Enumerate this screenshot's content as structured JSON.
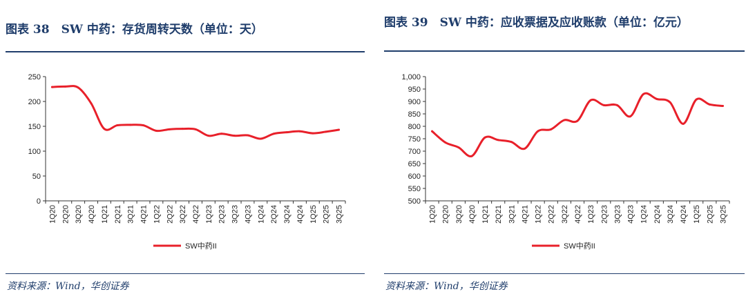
{
  "charts": [
    {
      "title": "图表 38　SW 中药：存货周转天数（单位：天）",
      "source": "资料来源：Wind，华创证券",
      "chart_data": {
        "type": "line",
        "categories": [
          "1Q20",
          "2Q20",
          "3Q20",
          "4Q20",
          "1Q21",
          "2Q21",
          "3Q21",
          "4Q21",
          "1Q22",
          "2Q22",
          "3Q22",
          "4Q22",
          "1Q23",
          "2Q23",
          "3Q23",
          "4Q23",
          "1Q24",
          "2Q24",
          "3Q24",
          "4Q24",
          "1Q25",
          "2Q25",
          "3Q25"
        ],
        "series": [
          {
            "name": "SW中药II",
            "color": "#e8202a",
            "values": [
              229,
              230,
              228,
              196,
              145,
              152,
              153,
              152,
              141,
              144,
              145,
              144,
              131,
              135,
              131,
              132,
              125,
              135,
              138,
              140,
              136,
              139,
              143
            ]
          }
        ],
        "yticks": [
          "250",
          "200",
          "150",
          "100",
          "50",
          "0"
        ],
        "ylim": [
          0,
          250
        ],
        "legend": "bottom"
      }
    },
    {
      "title": "图表 39　SW 中药：应收票据及应收账款（单位：亿元）",
      "source": "资料来源：Wind，华创证券",
      "chart_data": {
        "type": "line",
        "categories": [
          "1Q20",
          "2Q20",
          "3Q20",
          "4Q20",
          "1Q21",
          "2Q21",
          "3Q21",
          "4Q21",
          "1Q22",
          "2Q22",
          "3Q22",
          "4Q22",
          "1Q23",
          "2Q23",
          "3Q23",
          "4Q23",
          "1Q24",
          "2Q24",
          "3Q24",
          "4Q24",
          "1Q25",
          "2Q25",
          "3Q25"
        ],
        "series": [
          {
            "name": "SW中药II",
            "color": "#e8202a",
            "values": [
              780,
              735,
              715,
              680,
              755,
              745,
              737,
              710,
              780,
              788,
              825,
              822,
              905,
              885,
              885,
              840,
              930,
              910,
              897,
              810,
              908,
              888,
              882
            ]
          }
        ],
        "yticks": [
          "1,000",
          "950",
          "900",
          "850",
          "800",
          "750",
          "700",
          "650",
          "600",
          "550",
          "500"
        ],
        "ylim": [
          500,
          1000
        ],
        "legend": "bottom"
      }
    }
  ]
}
